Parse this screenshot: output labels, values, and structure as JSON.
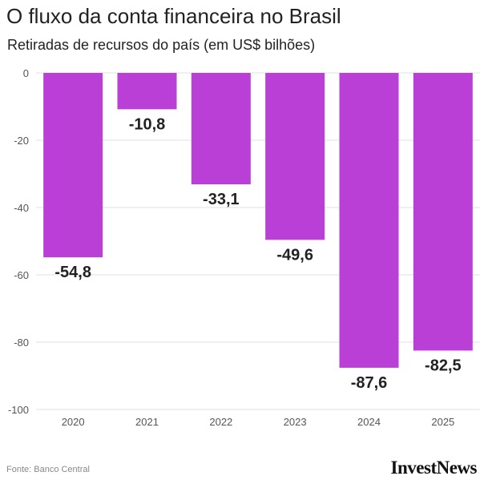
{
  "header": {
    "title": "O fluxo da conta financeira no Brasil",
    "subtitle": "Retiradas de recursos do país (em US$ bilhões)"
  },
  "footer": {
    "source": "Fonte: Banco Central",
    "logo": "InvestNews"
  },
  "colors": {
    "bar": "#b93fd6",
    "grid": "#e2e2e2",
    "axis_text": "#555555",
    "label_text": "#222222"
  },
  "chart_data": {
    "type": "bar",
    "title": "O fluxo da conta financeira no Brasil",
    "subtitle": "Retiradas de recursos do país (em US$ bilhões)",
    "categories": [
      "2020",
      "2021",
      "2022",
      "2023",
      "2024",
      "2025"
    ],
    "values": [
      -54.8,
      -10.8,
      -33.1,
      -49.6,
      -87.6,
      -82.5
    ],
    "value_labels": [
      "-54,8",
      "-10,8",
      "-33,1",
      "-49,6",
      "-87,6",
      "-82,5"
    ],
    "y_ticks": [
      0,
      -20,
      -40,
      -60,
      -80,
      -100
    ],
    "y_tick_labels": [
      "0",
      "-20",
      "-40",
      "-60",
      "-80",
      "-100"
    ],
    "ylim": [
      -100,
      0
    ],
    "xlabel": "",
    "ylabel": "",
    "grid": true,
    "legend": "none"
  }
}
